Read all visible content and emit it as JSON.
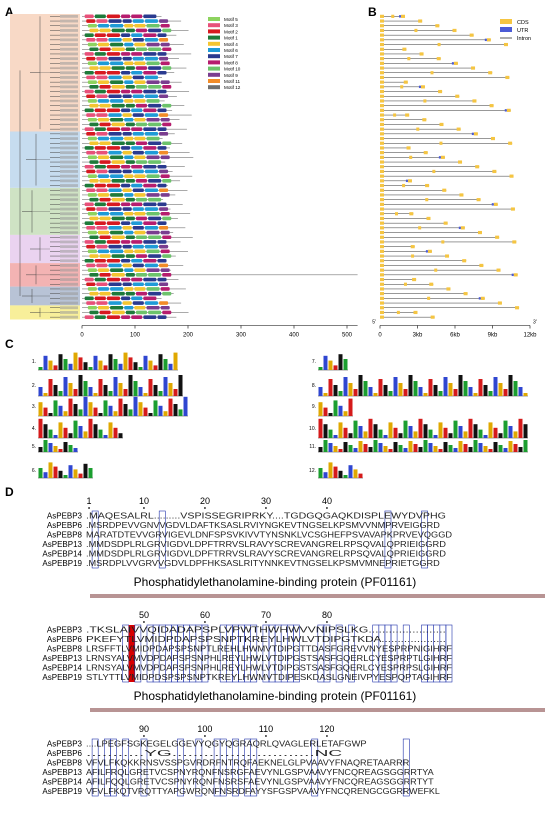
{
  "panels": {
    "a": "A",
    "b": "B",
    "c": "C",
    "d": "D"
  },
  "panel_a": {
    "legend": [
      {
        "label": "Motif 5",
        "color": "#8dd35f"
      },
      {
        "label": "Motif 3",
        "color": "#e8507a"
      },
      {
        "label": "Motif 2",
        "color": "#d71920"
      },
      {
        "label": "Motif 1",
        "color": "#1e7a3a"
      },
      {
        "label": "Motif 4",
        "color": "#f4c531"
      },
      {
        "label": "Motif 6",
        "color": "#1f9bd7"
      },
      {
        "label": "Motif 7",
        "color": "#2a3a8f"
      },
      {
        "label": "Motif 8",
        "color": "#b61d6e"
      },
      {
        "label": "Motif 10",
        "color": "#6cc36b"
      },
      {
        "label": "Motif 9",
        "color": "#7a3d8f"
      },
      {
        "label": "Motif 11",
        "color": "#f28c28"
      },
      {
        "label": "Motif 12",
        "color": "#707070"
      }
    ],
    "axis_ticks": [
      "0",
      "100",
      "200",
      "300",
      "400",
      "500"
    ]
  },
  "panel_b": {
    "legend": [
      {
        "label": "CDS",
        "color": "#f5c542"
      },
      {
        "label": "UTR",
        "color": "#4b5bd6"
      },
      {
        "label": "Intron",
        "color": "#333333"
      }
    ],
    "axis_ticks": [
      "0",
      "3kb",
      "6kb",
      "9kb",
      "12kb"
    ],
    "five_prime": "5'",
    "three_prime": "3'"
  },
  "panel_c": {
    "motif_numbers_left": [
      "1.",
      "2.",
      "3.",
      "4.",
      "5.",
      "6."
    ],
    "motif_numbers_right": [
      "7.",
      "8.",
      "9.",
      "10.",
      "11.",
      "12."
    ]
  },
  "panel_d": {
    "blocks": [
      {
        "ruler": [
          {
            "label": "1",
            "col": 0
          },
          {
            "label": "10",
            "col": 9
          },
          {
            "label": "20",
            "col": 19
          },
          {
            "label": "30",
            "col": 29
          },
          {
            "label": "40",
            "col": 39
          }
        ],
        "rows": [
          {
            "name": "AsPEBP3",
            "seq": ".MAQESALRL.........VSPISSEGRIPRKY....TGDGQGAQKDISPLEWYDVPHG"
          },
          {
            "name": "AsPEBP6",
            "seq": ".MSRDPEVVGNVVGDVLDAFTKSASLRVIYNGKEVTNGSELKPSMVVNMPRVEIGGRD"
          },
          {
            "name": "AsPEBP8",
            "seq": "MARATDTEVVGRVIGEVLDNFSPSVKIVVTYNSNKLVCSGHEFPSVAVAPKPRVEVQGGD"
          },
          {
            "name": "AsPEBP13",
            "seq": ".MMDSDPLRLGRVIGDVLDPFTRRVSLRAVYSCREVANGRELRPSQVALQPRIEIGGRD"
          },
          {
            "name": "AsPEBP14",
            "seq": ".MMDSDPLRLGRVIGDVLDPFTRRVSLRAVYSCREVANGRELRPSQVALQPRIEIGGRD"
          },
          {
            "name": "AsPEBP19",
            "seq": ".MSRDPLVVGRVVGDVLDPFHKSASLRITYNNKEVTNGSELKPSMVMNEPRIETGGRD"
          }
        ],
        "domain_label": "Phosphatidylethanolamine-binding protein (PF01161)"
      },
      {
        "ruler": [
          {
            "label": "50",
            "col": 9
          },
          {
            "label": "60",
            "col": 19
          },
          {
            "label": "70",
            "col": 29
          },
          {
            "label": "80",
            "col": 39
          }
        ],
        "rows": [
          {
            "name": "AsPEBP3",
            "seq": ".TKSLAIVVQIDADAPSPLVPWTHWHWVVNIPSLKG......................."
          },
          {
            "name": "AsPEBP6",
            "seq": "PKEFYTLVMIDPDAPSPSNPTKREYLHWLVTDIPGTKDA...................."
          },
          {
            "name": "AsPEBP8",
            "seq": "LRSFFTLVMIDPDAPSPSNPTLREHLHWMVTDIPGTTDASFGREVVNYESPRPNIGIHRF"
          },
          {
            "name": "AsPEBP13",
            "seq": "LRNSYALVMVDPDAPSPSNPHLREYLHWLVTDIPGSTSASFGQERLCYESPRPTLGIHRF"
          },
          {
            "name": "AsPEBP14",
            "seq": "LRNSYALVMVDPDAPSPSNPHLREYLHWLVTDIPGSTSASFGQERLCYESPRPSLGIHRF"
          },
          {
            "name": "AsPEBP19",
            "seq": "STLYTTLVMIDPDSPSPSNPTKREYLHWMVTDIPESKDASLGNEIVPYESPQPTAGIHRF"
          }
        ],
        "domain_label": "Phosphatidylethanolamine-binding protein (PF01161)"
      },
      {
        "ruler": [
          {
            "label": "90",
            "col": 9
          },
          {
            "label": "100",
            "col": 19
          },
          {
            "label": "110",
            "col": 29
          },
          {
            "label": "120",
            "col": 39
          }
        ],
        "rows": [
          {
            "name": "AsPEBP3",
            "seq": "....LPEGFSGKEGELGGEVYQGYQGRAQRLQVAGLERLETAFGWP"
          },
          {
            "name": "AsPEBP6",
            "seq": "...........YG...........................NC"
          },
          {
            "name": "AsPEBP8",
            "seq": "VFVLFKQKKRNSVSSPGVRDRFNTRQFAEKNELGLPVAAVYFNAQRETAARRR"
          },
          {
            "name": "AsPEBP13",
            "seq": "AFILFRQLGRETVCSPNYRQNFNSRGFAEVYNLGSPVAAVYFNCQREAGSGGRRTYA"
          },
          {
            "name": "AsPEBP14",
            "seq": "AFILFQQLGRETVCSPNYRQNFNSRSFAEVYNLGSPVAAVYFNCQREAGSGGRRTYT"
          },
          {
            "name": "AsPEBP19",
            "seq": "VFVLFKQTVRQTTYAPGWRQNFNSRDFAYYSFGSPVAAVYFNCQRENGCGGRRWEFKL"
          }
        ]
      }
    ]
  }
}
